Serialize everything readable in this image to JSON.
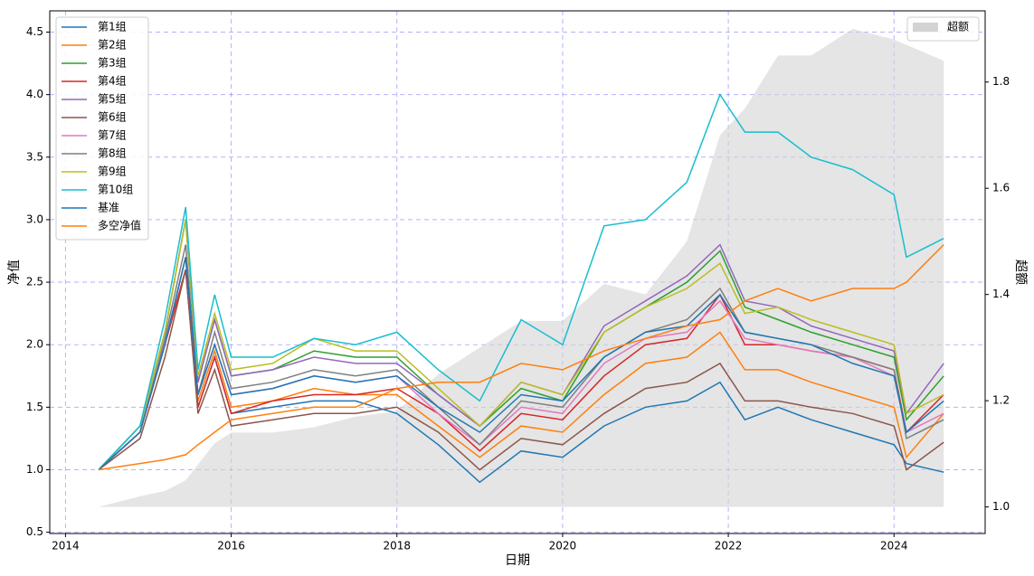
{
  "chart_data": {
    "type": "line",
    "xlabel": "日期",
    "ylabel": "净值",
    "y2label": "超额",
    "x": [
      2014.4,
      2014.9,
      2015.2,
      2015.45,
      2015.6,
      2015.8,
      2016.0,
      2016.5,
      2017.0,
      2017.5,
      2018.0,
      2018.5,
      2019.0,
      2019.5,
      2020.0,
      2020.5,
      2021.0,
      2021.5,
      2021.9,
      2022.2,
      2022.6,
      2023.0,
      2023.5,
      2024.0,
      2024.15,
      2024.6
    ],
    "xlim": [
      2013.81,
      2025.1
    ],
    "xticks": [
      2014,
      2016,
      2018,
      2020,
      2022,
      2024
    ],
    "ylim": [
      0.49,
      4.67
    ],
    "yticks": [
      0.5,
      {
        "value": 1.0,
        "label": "1.0"
      },
      1.5,
      {
        "value": 2.0,
        "label": "2.0"
      },
      2.5,
      {
        "value": 3.0,
        "label": "3.0"
      },
      3.5,
      {
        "value": 4.0,
        "label": "4.0"
      },
      4.5
    ],
    "y2lim": [
      0.95,
      1.934
    ],
    "y2ticks": [
      {
        "value": 1.0,
        "label": "1.0"
      },
      1.2,
      1.4,
      1.6,
      1.8
    ],
    "grid": true,
    "legend": "upper left",
    "legend2": "upper right",
    "series": [
      {
        "name": "第1组",
        "color": "#1f77b4",
        "values": [
          1,
          1.3,
          2.0,
          2.7,
          1.5,
          1.9,
          1.45,
          1.5,
          1.55,
          1.55,
          1.45,
          1.2,
          0.9,
          1.15,
          1.1,
          1.35,
          1.5,
          1.55,
          1.7,
          1.4,
          1.5,
          1.4,
          1.3,
          1.2,
          1.05,
          0.98
        ]
      },
      {
        "name": "第2组",
        "color": "#ff7f0e",
        "values": [
          1,
          1.3,
          2.0,
          2.6,
          1.55,
          1.95,
          1.5,
          1.55,
          1.65,
          1.6,
          1.6,
          1.35,
          1.1,
          1.35,
          1.3,
          1.6,
          1.85,
          1.9,
          2.1,
          1.8,
          1.8,
          1.7,
          1.6,
          1.5,
          1.1,
          1.45
        ]
      },
      {
        "name": "第3组",
        "color": "#2ca02c",
        "values": [
          1,
          1.35,
          2.1,
          3.0,
          1.7,
          2.2,
          1.75,
          1.8,
          1.95,
          1.9,
          1.9,
          1.6,
          1.35,
          1.65,
          1.55,
          2.1,
          2.3,
          2.5,
          2.75,
          2.3,
          2.2,
          2.1,
          2.0,
          1.9,
          1.4,
          1.75
        ]
      },
      {
        "name": "第4组",
        "color": "#d62728",
        "values": [
          1,
          1.3,
          2.0,
          2.6,
          1.5,
          1.9,
          1.45,
          1.55,
          1.6,
          1.6,
          1.65,
          1.45,
          1.15,
          1.45,
          1.4,
          1.75,
          2.0,
          2.05,
          2.4,
          2.0,
          2.0,
          1.95,
          1.9,
          1.8,
          1.3,
          1.6
        ]
      },
      {
        "name": "第5组",
        "color": "#9467bd",
        "values": [
          1,
          1.35,
          2.1,
          3.0,
          1.7,
          2.2,
          1.75,
          1.8,
          1.9,
          1.85,
          1.85,
          1.6,
          1.35,
          1.7,
          1.6,
          2.15,
          2.35,
          2.55,
          2.8,
          2.35,
          2.3,
          2.15,
          2.05,
          1.95,
          1.45,
          1.85
        ]
      },
      {
        "name": "第6组",
        "color": "#8c564b",
        "values": [
          1,
          1.25,
          1.9,
          2.6,
          1.45,
          1.8,
          1.35,
          1.4,
          1.45,
          1.45,
          1.5,
          1.3,
          1.0,
          1.25,
          1.2,
          1.45,
          1.65,
          1.7,
          1.85,
          1.55,
          1.55,
          1.5,
          1.45,
          1.35,
          1.0,
          1.22
        ]
      },
      {
        "name": "第7组",
        "color": "#e377c2",
        "values": [
          1,
          1.3,
          2.0,
          2.7,
          1.6,
          2.0,
          1.6,
          1.65,
          1.75,
          1.7,
          1.75,
          1.45,
          1.2,
          1.5,
          1.45,
          1.85,
          2.05,
          2.1,
          2.35,
          2.05,
          2.0,
          1.95,
          1.9,
          1.75,
          1.3,
          1.45
        ]
      },
      {
        "name": "第8组",
        "color": "#7f7f7f",
        "values": [
          1,
          1.3,
          2.05,
          2.8,
          1.6,
          2.1,
          1.65,
          1.7,
          1.8,
          1.75,
          1.8,
          1.5,
          1.2,
          1.55,
          1.5,
          1.9,
          2.1,
          2.2,
          2.45,
          2.1,
          2.05,
          2.0,
          1.9,
          1.8,
          1.25,
          1.4
        ]
      },
      {
        "name": "第9组",
        "color": "#bcbd22",
        "values": [
          1,
          1.35,
          2.1,
          3.0,
          1.75,
          2.25,
          1.8,
          1.85,
          2.05,
          1.95,
          1.95,
          1.65,
          1.35,
          1.7,
          1.6,
          2.1,
          2.3,
          2.45,
          2.65,
          2.25,
          2.3,
          2.2,
          2.1,
          2.0,
          1.45,
          1.6
        ]
      },
      {
        "name": "第10组",
        "color": "#17becf",
        "values": [
          1,
          1.35,
          2.2,
          3.1,
          1.8,
          2.4,
          1.9,
          1.9,
          2.05,
          2.0,
          2.1,
          1.8,
          1.55,
          2.2,
          2.0,
          2.95,
          3.0,
          3.3,
          4.0,
          3.7,
          3.7,
          3.5,
          3.4,
          3.2,
          2.7,
          2.85
        ]
      },
      {
        "name": "基准",
        "color": "#1f77b4",
        "values": [
          1,
          1.3,
          2.0,
          2.7,
          1.6,
          2.0,
          1.6,
          1.65,
          1.75,
          1.7,
          1.75,
          1.5,
          1.3,
          1.6,
          1.55,
          1.9,
          2.1,
          2.15,
          2.4,
          2.1,
          2.05,
          2.0,
          1.85,
          1.75,
          1.3,
          1.55
        ]
      },
      {
        "name": "多空净值",
        "color": "#ff7f0e",
        "values": [
          1,
          1.05,
          1.08,
          1.12,
          1.2,
          1.3,
          1.4,
          1.45,
          1.5,
          1.5,
          1.65,
          1.7,
          1.7,
          1.85,
          1.8,
          1.95,
          2.05,
          2.15,
          2.2,
          2.35,
          2.45,
          2.35,
          2.45,
          2.45,
          2.5,
          2.8
        ]
      },
      {
        "name": "超额",
        "color": "#d3d3d3",
        "axis": "y2",
        "type": "area",
        "values": [
          1.0,
          1.02,
          1.03,
          1.05,
          1.08,
          1.12,
          1.14,
          1.14,
          1.15,
          1.17,
          1.18,
          1.25,
          1.3,
          1.35,
          1.35,
          1.42,
          1.4,
          1.5,
          1.7,
          1.75,
          1.85,
          1.85,
          1.9,
          1.88,
          1.87,
          1.84
        ]
      }
    ]
  }
}
